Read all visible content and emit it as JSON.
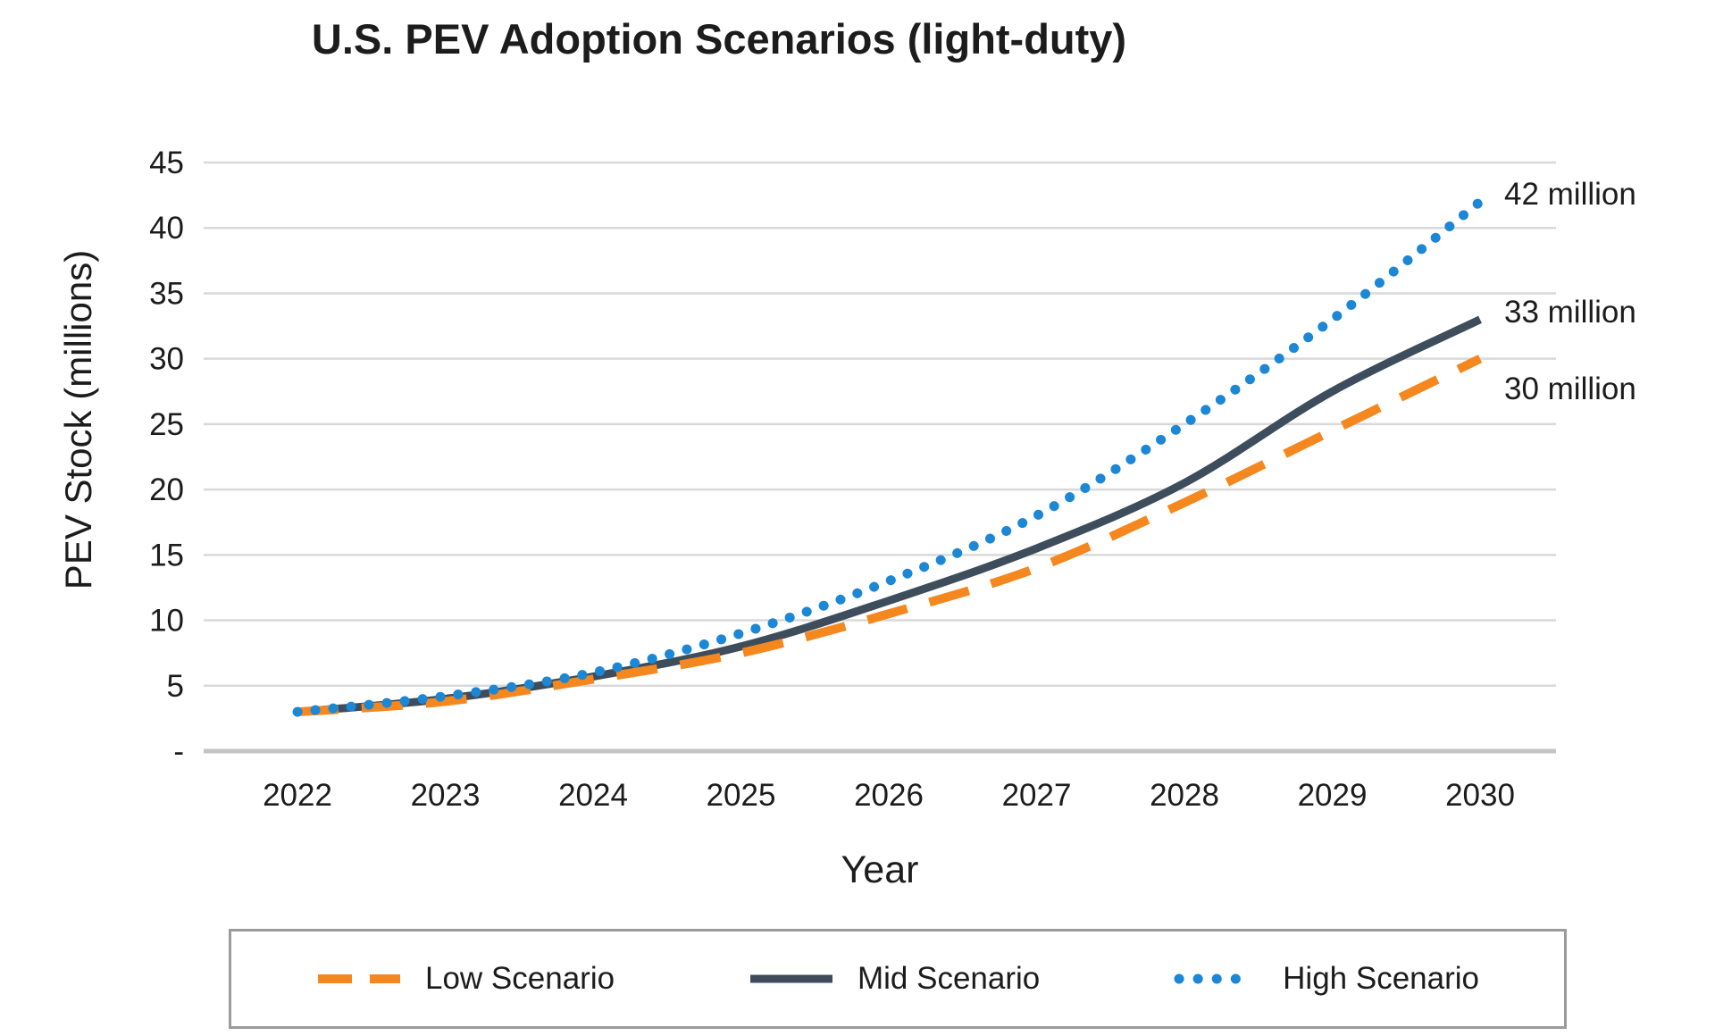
{
  "chart_data": {
    "type": "line",
    "title": "U.S. PEV Adoption Scenarios (light-duty)",
    "xlabel": "Year",
    "ylabel": "PEV Stock (millions)",
    "x": [
      "2022",
      "2023",
      "2024",
      "2025",
      "2026",
      "2027",
      "2028",
      "2029",
      "2030"
    ],
    "ylim": [
      0,
      45
    ],
    "ytick_interval": 5,
    "ytick_labels": [
      "-",
      "5",
      "10",
      "15",
      "20",
      "25",
      "30",
      "35",
      "40",
      "45"
    ],
    "grid": "horizontal",
    "legend_position": "bottom",
    "series": [
      {
        "name": "Low Scenario",
        "style": "dashed",
        "color": "#F5871F",
        "values": [
          3,
          3.8,
          5.5,
          7.5,
          10.5,
          14,
          19,
          24.5,
          30
        ],
        "end_label": "30 million"
      },
      {
        "name": "Mid Scenario",
        "style": "solid",
        "color": "#3E4D5C",
        "values": [
          3,
          4,
          5.7,
          8,
          11.5,
          15.5,
          20.5,
          27.5,
          33
        ],
        "end_label": "33 million"
      },
      {
        "name": "High Scenario",
        "style": "dotted",
        "color": "#1B87D5",
        "values": [
          3,
          4.2,
          6,
          9,
          13,
          18,
          25,
          33,
          42
        ],
        "end_label": "42 million"
      }
    ]
  }
}
